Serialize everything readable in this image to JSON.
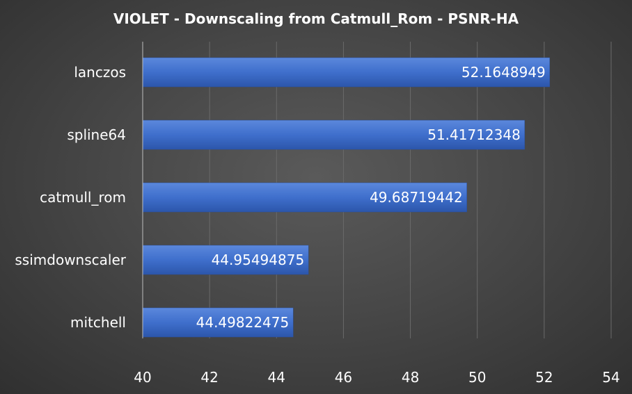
{
  "chart_data": {
    "type": "bar",
    "orientation": "horizontal",
    "title": "VIOLET - Downscaling from Catmull_Rom - PSNR-HA",
    "categories": [
      "lanczos",
      "spline64",
      "catmull_rom",
      "ssimdownscaler",
      "mitchell"
    ],
    "values": [
      52.1648949,
      51.41712348,
      49.68719442,
      44.95494875,
      44.49822475
    ],
    "value_labels": [
      "52.1648949",
      "51.41712348",
      "49.68719442",
      "44.95494875",
      "44.49822475"
    ],
    "xlim": [
      40,
      54
    ],
    "x_ticks": [
      40,
      42,
      44,
      46,
      48,
      50,
      52,
      54
    ],
    "grid": true,
    "legend": "none",
    "bar_color": "#4472c4"
  }
}
